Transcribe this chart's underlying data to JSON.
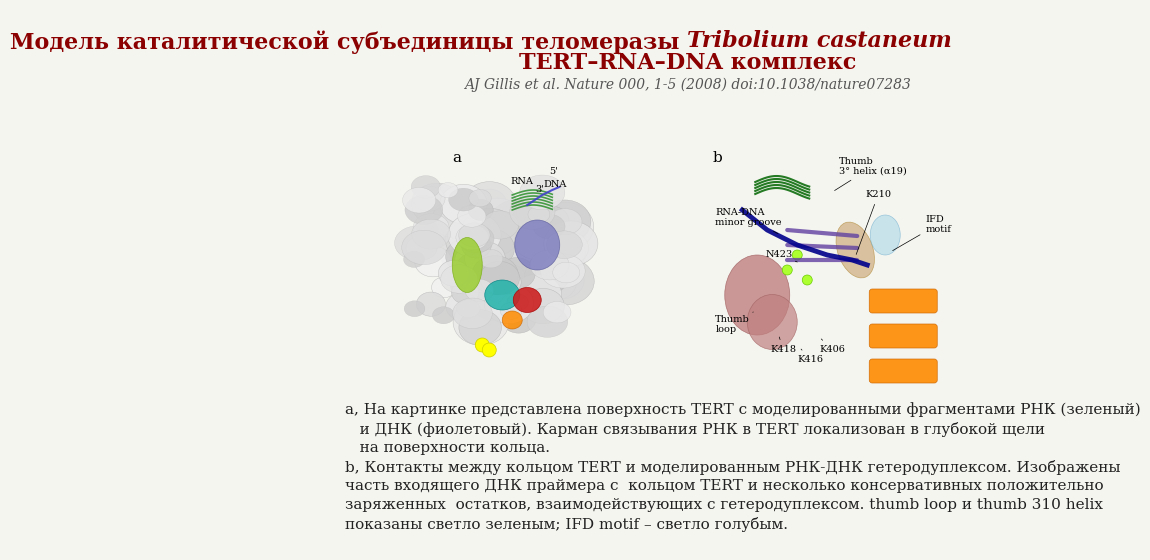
{
  "title_line1": "Модель каталитической субъединицы теломеразы ",
  "title_line1_italic": "Tribolium castaneum",
  "title_line2": "TERT–RNA–DNA комплекс",
  "citation": "AJ Gillis et al. Nature 000, 1-5 (2008) doi:10.1038/nature07283",
  "bg_color": "#f5f5f0",
  "title_color": "#8B0000",
  "citation_color": "#555555",
  "body_color": "#222222",
  "body_text_a": "a, На картинке представлена поверхность TERT с моделированными фрагментами РНК (зеленый)\n   и ДНК (фиолетовый). Карман связывания РНК в TERT локализован в глубокой щели\n   на поверхности кольца.",
  "body_text_b": "b, Контакты между кольцом TERT и моделированным РНК-ДНК гетеродуплексом. Изображены\nчасть входящего ДНК праймера с  кольцом TERT и несколько консервативных положительно\nзаряженных  остатков, взаимодействующих с гетеродуплексом. thumb loop и thumb 310 helix\nпоказаны светло зеленым; IFD motif – светло голубым.",
  "title_fontsize": 16,
  "citation_fontsize": 10,
  "body_fontsize": 11
}
